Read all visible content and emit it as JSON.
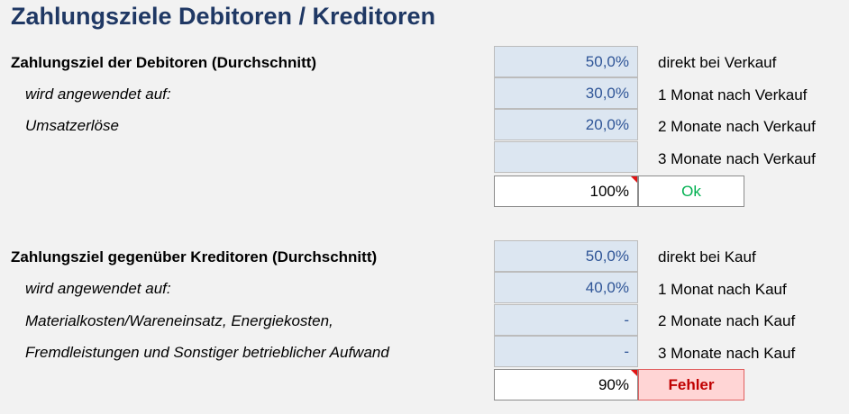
{
  "title": "Zahlungsziele Debitoren / Kreditoren",
  "debitoren": {
    "heading": "Zahlungsziel der Debitoren (Durchschnitt)",
    "applied_label": "wird angewendet auf:",
    "applied_item": "Umsatzerlöse",
    "rows": [
      {
        "value": "50,0%",
        "desc": "direkt bei Verkauf"
      },
      {
        "value": "30,0%",
        "desc": "1 Monat nach Verkauf"
      },
      {
        "value": "20,0%",
        "desc": "2 Monate nach Verkauf"
      },
      {
        "value": "",
        "desc": "3 Monate nach Verkauf"
      }
    ],
    "total": "100%",
    "status": "Ok"
  },
  "kreditoren": {
    "heading": "Zahlungsziel gegenüber Kreditoren (Durchschnitt)",
    "applied_label": "wird angewendet auf:",
    "applied_line1": "Materialkosten/Wareneinsatz, Energiekosten,",
    "applied_line2": "Fremdleistungen und Sonstiger betrieblicher Aufwand",
    "rows": [
      {
        "value": "50,0%",
        "desc": "direkt bei Kauf"
      },
      {
        "value": "40,0%",
        "desc": "1 Monat nach Kauf"
      },
      {
        "value": "-",
        "desc": "2 Monate nach Kauf"
      },
      {
        "value": "-",
        "desc": "3 Monate nach Kauf"
      }
    ],
    "total": "90%",
    "status": "Fehler"
  },
  "colors": {
    "title": "#1f3864",
    "input_fill": "#dce6f1",
    "input_text": "#2f5597",
    "ok": "#00b050",
    "error_fill": "#ffd5d5",
    "error_text": "#c00000",
    "comment_marker": "#e21414"
  }
}
